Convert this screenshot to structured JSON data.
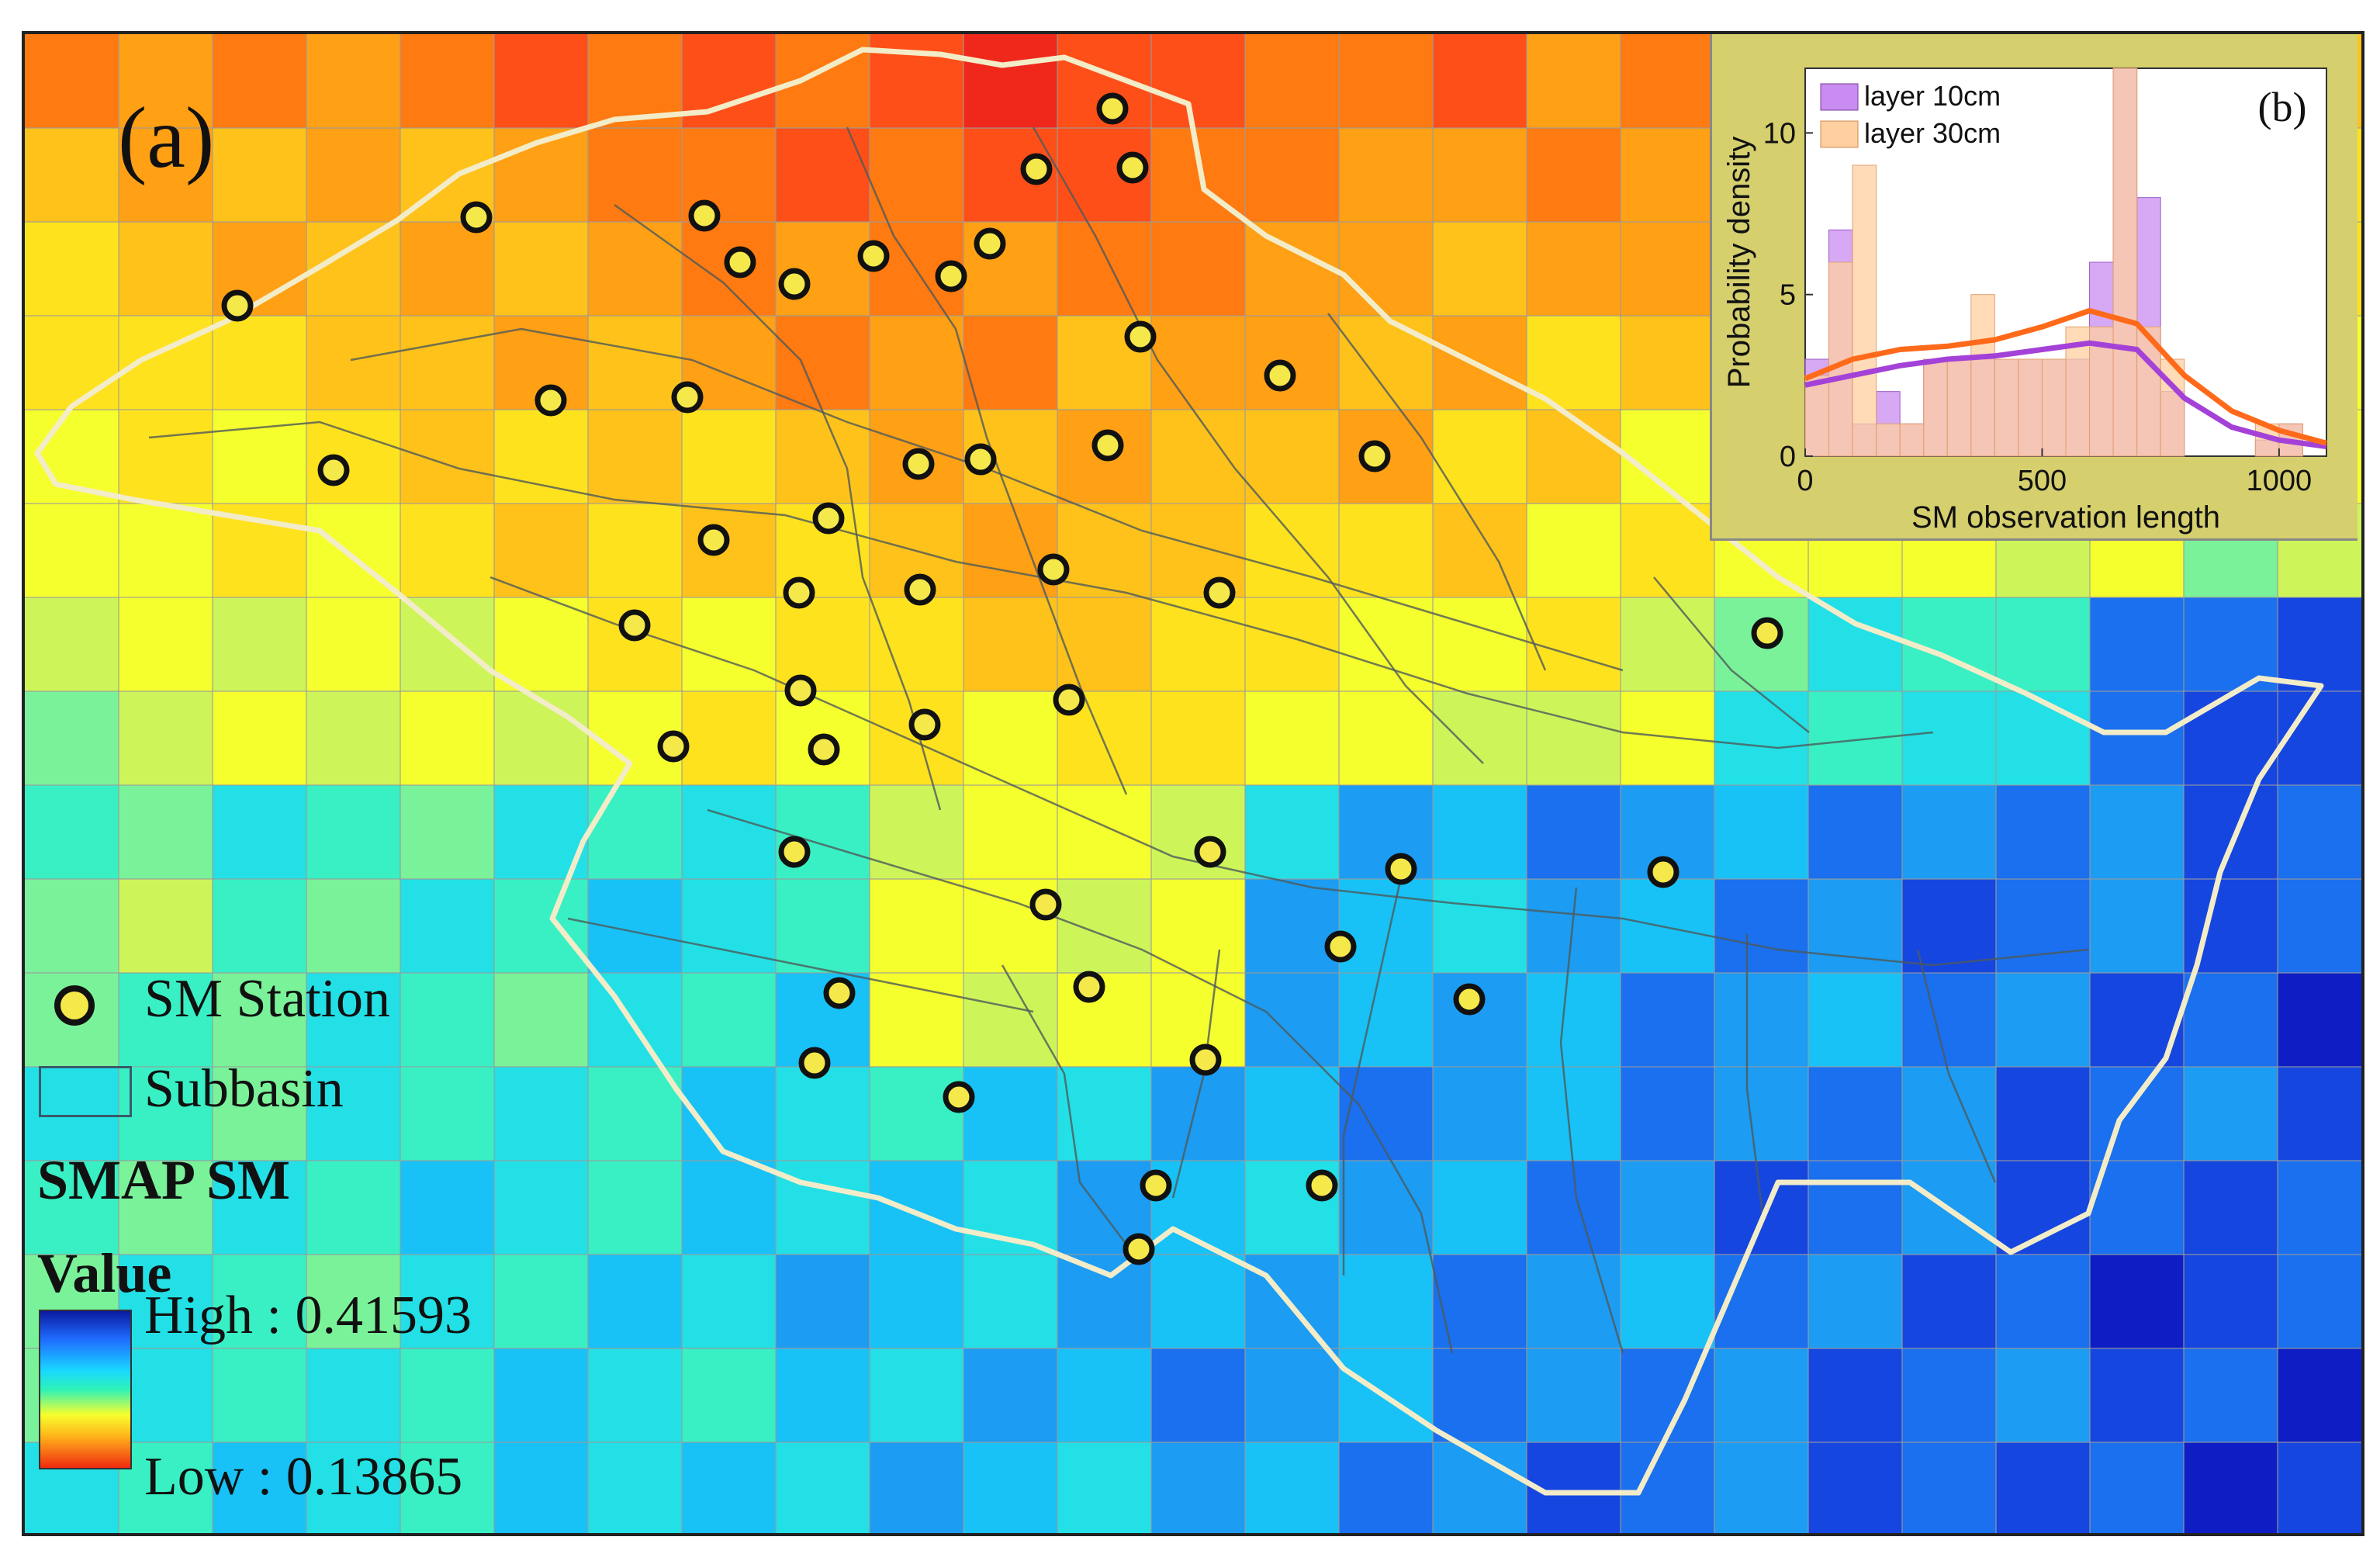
{
  "panel_labels": {
    "map": "(a)",
    "inset": "(b)"
  },
  "legend": {
    "station_label": "SM Station",
    "subbasin_label": "Subbasin",
    "raster_title": "SMAP SM",
    "value_title": "Value",
    "high_label": "High : 0.41593",
    "low_label": "Low : 0.13865"
  },
  "colors": {
    "station_fill": "#f5e84a",
    "station_stroke": "#111111",
    "basin_outline": "#f3ecc8",
    "subbasin_line": "#4d5a5a",
    "layer10": "#a442d8",
    "layer30": "#ff6a1a"
  },
  "raster_rows": [
    "AaBbBcccadGFed....",
    "cbbbcddcccccc.....",
    "bccccdcbddddbd....",
    "bbcccdccddcdd.....",
    "ddccddcdedddeefff.",
    "dddddddddeeefffffff",
    "GfffgGfddeeeefggkkk"
  ],
  "chart_data": {
    "type": "histogram",
    "title": "",
    "xlabel": "SM observation length",
    "ylabel": "Probability density",
    "xlim": [
      0,
      1100
    ],
    "ylim": [
      0,
      12
    ],
    "xticks": [
      0,
      500,
      1000
    ],
    "yticks": [
      0,
      5,
      10
    ],
    "legend_position": "top-left",
    "series": [
      {
        "name": "layer 10cm",
        "kind": "histogram",
        "bins": [
          [
            0,
            50,
            3
          ],
          [
            50,
            100,
            7
          ],
          [
            100,
            150,
            1
          ],
          [
            150,
            200,
            2
          ],
          [
            200,
            250,
            1
          ],
          [
            250,
            300,
            3
          ],
          [
            300,
            350,
            3
          ],
          [
            350,
            400,
            3
          ],
          [
            400,
            450,
            3
          ],
          [
            450,
            500,
            3
          ],
          [
            500,
            550,
            3
          ],
          [
            550,
            600,
            3
          ],
          [
            600,
            650,
            6
          ],
          [
            650,
            700,
            12
          ],
          [
            700,
            750,
            8
          ],
          [
            750,
            800,
            2
          ],
          [
            950,
            1000,
            0.5
          ],
          [
            1000,
            1050,
            1
          ]
        ]
      },
      {
        "name": "layer 30cm",
        "kind": "histogram",
        "bins": [
          [
            0,
            50,
            2.5
          ],
          [
            50,
            100,
            6
          ],
          [
            100,
            150,
            9
          ],
          [
            150,
            200,
            1
          ],
          [
            200,
            250,
            1
          ],
          [
            250,
            300,
            3
          ],
          [
            300,
            350,
            3
          ],
          [
            350,
            400,
            5
          ],
          [
            400,
            450,
            3
          ],
          [
            450,
            500,
            3
          ],
          [
            500,
            550,
            3
          ],
          [
            550,
            600,
            4
          ],
          [
            600,
            650,
            4
          ],
          [
            650,
            700,
            12
          ],
          [
            700,
            750,
            4
          ],
          [
            750,
            800,
            3
          ],
          [
            950,
            1000,
            1
          ],
          [
            1000,
            1050,
            1
          ]
        ]
      },
      {
        "name": "layer 10cm density",
        "kind": "curve",
        "x": [
          0,
          100,
          200,
          300,
          400,
          500,
          600,
          700,
          800,
          900,
          1000,
          1100
        ],
        "y": [
          2.2,
          2.5,
          2.8,
          3.0,
          3.1,
          3.3,
          3.5,
          3.3,
          1.8,
          0.9,
          0.5,
          0.3
        ]
      },
      {
        "name": "layer 30cm density",
        "kind": "curve",
        "x": [
          0,
          100,
          200,
          300,
          400,
          500,
          600,
          700,
          800,
          900,
          1000,
          1100
        ],
        "y": [
          2.4,
          3.0,
          3.3,
          3.4,
          3.6,
          4.0,
          4.5,
          4.1,
          2.5,
          1.4,
          0.8,
          0.4
        ]
      }
    ]
  }
}
